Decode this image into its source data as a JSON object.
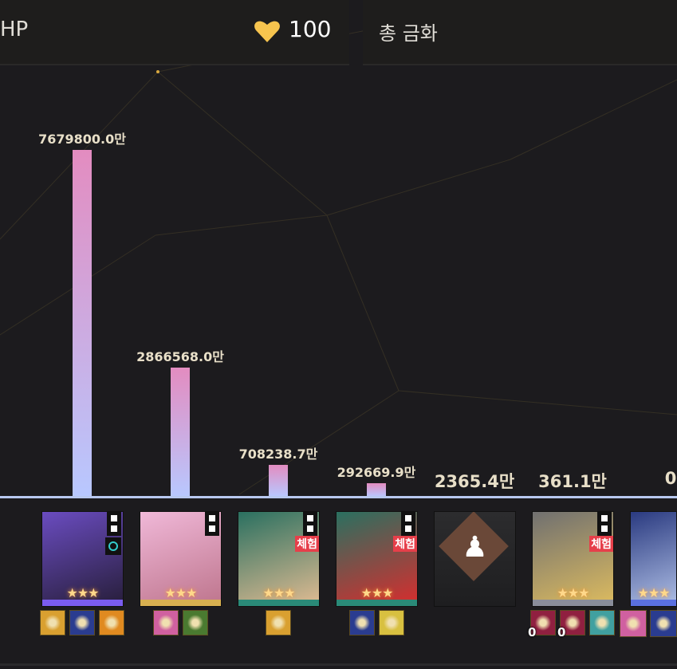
{
  "header": {
    "hp_label": "HP",
    "hp_value": "100",
    "hp_icon": "heart-icon",
    "hp_icon_color": "#f7c44e",
    "total_label": "총 금화"
  },
  "chart_data": {
    "type": "bar",
    "unit": "만",
    "values": [
      7679800.0,
      2866568.0,
      708238.7,
      292669.9,
      2365.4,
      361.1,
      0
    ],
    "labels": [
      "7679800.0만",
      "2866568.0만",
      "708238.7만",
      "292669.9만",
      "2365.4만",
      "361.1만",
      "0"
    ],
    "bar_gradient": [
      "#e38cc0",
      "#b8c8ff"
    ]
  },
  "characters": [
    {
      "rarity_color": "#7a5cf0",
      "portrait": [
        "#6a4cc0",
        "#2a2040"
      ],
      "stars": "★★★",
      "eidolon": true,
      "ring": true,
      "trial": "",
      "relics": [
        {
          "c": "#d9a030"
        },
        {
          "c": "#2a3c90"
        },
        {
          "c": "#e08a20"
        }
      ]
    },
    {
      "rarity_color": "#d8b050",
      "portrait": [
        "#f0b8d8",
        "#c07890"
      ],
      "stars": "★★★",
      "eidolon": true,
      "trial": "",
      "relics": [
        {
          "c": "#d060a0"
        },
        {
          "c": "#4a7a30"
        }
      ]
    },
    {
      "rarity_color": "#2a8a78",
      "portrait": [
        "#2a7060",
        "#d8b890"
      ],
      "stars": "★★★",
      "eidolon": true,
      "trial": "체험",
      "relics": [
        {
          "c": "#d9a030"
        }
      ]
    },
    {
      "rarity_color": "#2a8a78",
      "portrait": [
        "#2a7060",
        "#d03030"
      ],
      "stars": "★★★",
      "eidolon": true,
      "trial": "체험",
      "relics": [
        {
          "c": "#2a3c90"
        },
        {
          "c": "#d8c040"
        }
      ]
    },
    {
      "empty": true
    },
    {
      "rarity_color": "#8a8d9a",
      "portrait": [
        "#707070",
        "#d8b860"
      ],
      "stars": "★★★",
      "eidolon": true,
      "trial": "체험",
      "relics": [
        {
          "c": "#902040",
          "n": "0"
        },
        {
          "c": "#902040",
          "n": "0"
        },
        {
          "c": "#40a0a0"
        }
      ]
    },
    {
      "rarity_color": "#5a70e0",
      "portrait": [
        "#2a3a80",
        "#a8b8e0"
      ],
      "stars": "★★★",
      "eidolon": false,
      "trial": "",
      "relics": [
        {
          "c": "#d060a0"
        },
        {
          "c": "#2a3c90"
        }
      ]
    }
  ]
}
